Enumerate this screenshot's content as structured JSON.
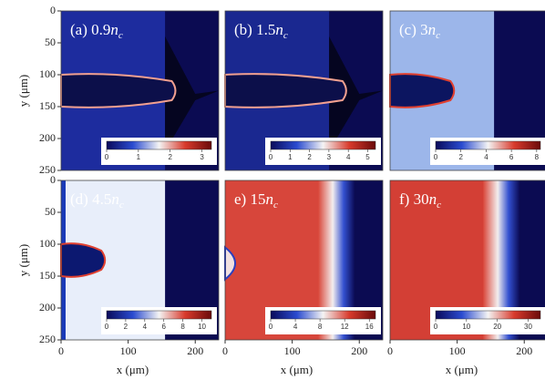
{
  "chart_data": [
    {
      "type": "heatmap",
      "label": {
        "text": "(a) 0.9",
        "var": "n",
        "sub": "c"
      },
      "xlim": [
        0,
        235
      ],
      "ylim": [
        250,
        0
      ],
      "yticks": [
        0,
        50,
        100,
        150,
        200,
        250
      ],
      "ylabel": "y (μm)",
      "colorbar": {
        "lim": [
          0,
          3.3
        ],
        "ticks": [
          0,
          1,
          2,
          3
        ]
      }
    },
    {
      "type": "heatmap",
      "label": {
        "text": "(b) 1.5",
        "var": "n",
        "sub": "c"
      },
      "xlim": [
        0,
        235
      ],
      "ylim": [
        250,
        0
      ],
      "colorbar": {
        "lim": [
          0,
          5.4
        ],
        "ticks": [
          0,
          1,
          2,
          3,
          4,
          5
        ]
      }
    },
    {
      "type": "heatmap",
      "label": {
        "text": "(c) 3",
        "var": "n",
        "sub": "c"
      },
      "xlim": [
        0,
        235
      ],
      "ylim": [
        250,
        0
      ],
      "colorbar": {
        "lim": [
          0,
          8.3
        ],
        "ticks": [
          0,
          2,
          4,
          6,
          8
        ]
      }
    },
    {
      "type": "heatmap",
      "label": {
        "text": "(d) 4.5",
        "var": "n",
        "sub": "c"
      },
      "xlim": [
        0,
        235
      ],
      "ylim": [
        250,
        0
      ],
      "xticks": [
        0,
        100,
        200
      ],
      "yticks": [
        0,
        50,
        100,
        150,
        200,
        250
      ],
      "xlabel": "x (μm)",
      "ylabel": "y (μm)",
      "colorbar": {
        "lim": [
          0,
          11
        ],
        "ticks": [
          0,
          2,
          4,
          6,
          8,
          10
        ]
      }
    },
    {
      "type": "heatmap",
      "label": {
        "text": "e) 15",
        "var": "n",
        "sub": "c"
      },
      "xlim": [
        0,
        235
      ],
      "ylim": [
        250,
        0
      ],
      "xticks": [
        0,
        100,
        200
      ],
      "xlabel": "x (μm)",
      "colorbar": {
        "lim": [
          0,
          17
        ],
        "ticks": [
          0,
          4,
          8,
          12,
          16
        ]
      }
    },
    {
      "type": "heatmap",
      "label": {
        "text": "f) 30",
        "var": "n",
        "sub": "c"
      },
      "xlim": [
        0,
        235
      ],
      "ylim": [
        250,
        0
      ],
      "xticks": [
        0,
        100,
        200
      ],
      "xlabel": "x (μm)",
      "colorbar": {
        "lim": [
          0,
          34
        ],
        "ticks": [
          0,
          10,
          20,
          30
        ]
      }
    }
  ]
}
